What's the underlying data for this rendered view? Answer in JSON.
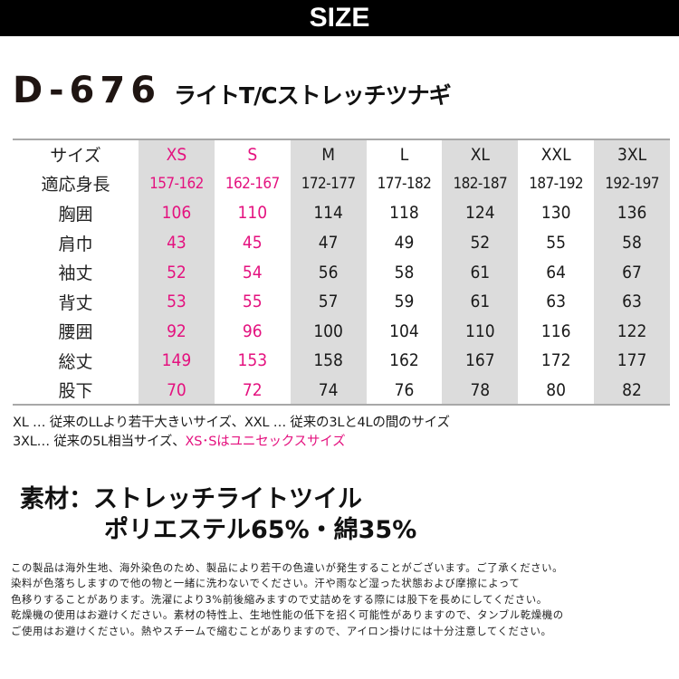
{
  "banner": {
    "title": "SIZE"
  },
  "product": {
    "model": "D-676",
    "name": "ライトT/Cストレッチツナギ"
  },
  "size_table": {
    "header_label": "サイズ",
    "sizes": [
      "XS",
      "S",
      "M",
      "L",
      "XL",
      "XXL",
      "3XL"
    ],
    "rows": [
      {
        "label": "適応身長",
        "values": [
          "157-162",
          "162-167",
          "172-177",
          "177-182",
          "182-187",
          "187-192",
          "192-197"
        ]
      },
      {
        "label": "胸囲",
        "values": [
          "106",
          "110",
          "114",
          "118",
          "124",
          "130",
          "136"
        ]
      },
      {
        "label": "肩巾",
        "values": [
          "43",
          "45",
          "47",
          "49",
          "52",
          "55",
          "58"
        ]
      },
      {
        "label": "袖丈",
        "values": [
          "52",
          "54",
          "56",
          "58",
          "61",
          "64",
          "67"
        ]
      },
      {
        "label": "背丈",
        "values": [
          "53",
          "55",
          "57",
          "59",
          "61",
          "63",
          "63"
        ]
      },
      {
        "label": "腰囲",
        "values": [
          "92",
          "96",
          "100",
          "104",
          "110",
          "116",
          "122"
        ]
      },
      {
        "label": "総丈",
        "values": [
          "149",
          "153",
          "158",
          "162",
          "167",
          "172",
          "177"
        ]
      },
      {
        "label": "股下",
        "values": [
          "70",
          "72",
          "74",
          "76",
          "78",
          "80",
          "82"
        ]
      }
    ],
    "highlight_sizes": [
      "XS",
      "S"
    ],
    "grey_columns": [
      "XS",
      "M",
      "XL",
      "3XL"
    ]
  },
  "notes": {
    "line1": "XL … 従来のLLより若干大きいサイズ、XXL … 従来の3Lと4Lの間のサイズ",
    "line2_prefix": "3XL… 従来の5L相当サイズ、",
    "line2_highlight": "XS･Sはユニセックスサイズ"
  },
  "material": {
    "line1": "素材：ストレッチライトツイル",
    "line2": "ポリエステル65%・綿35%"
  },
  "caution": {
    "lines": [
      "この製品は海外生地、海外染色のため、製品により若干の色違いが発生することがございます。ご了承ください。",
      "染料が色落ちしますので他の物と一緒に洗わないでください。汗や雨など湿った状態および摩擦によって",
      "色移りすることがあります。洗濯により3%前後縮みますので丈詰めをする際には股下を長めにしてください。",
      "乾燥機の使用はお避けください。素材の特性上、生地性能の低下を招く可能性がありますので、タンブル乾燥機の",
      "ご使用はお避けください。熱やスチームで縮むことがありますので、アイロン掛けには十分注意してください。"
    ]
  },
  "colors": {
    "accent_pink": "#e4127f",
    "column_grey": "#dcdcdc",
    "banner_black": "#000000"
  }
}
